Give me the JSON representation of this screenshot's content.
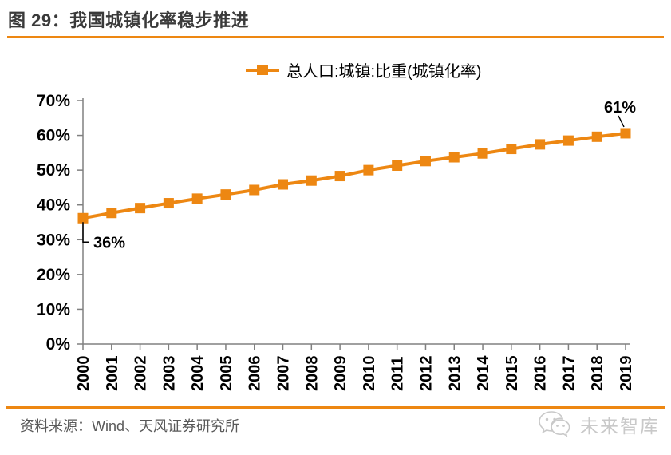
{
  "title": "图 29：我国城镇化率稳步推进",
  "legend": {
    "label": "总人口:城镇:比重(城镇化率)"
  },
  "chart_data": {
    "type": "line",
    "title": "图 29：我国城镇化率稳步推进",
    "xlabel": "",
    "ylabel": "",
    "x": [
      2000,
      2001,
      2002,
      2003,
      2004,
      2005,
      2006,
      2007,
      2008,
      2009,
      2010,
      2011,
      2012,
      2013,
      2014,
      2015,
      2016,
      2017,
      2018,
      2019
    ],
    "series": [
      {
        "name": "总人口:城镇:比重(城镇化率)",
        "color": "#ED8712",
        "marker": "square",
        "values": [
          36.2,
          37.7,
          39.1,
          40.5,
          41.8,
          43.0,
          44.3,
          45.9,
          47.0,
          48.3,
          50.0,
          51.3,
          52.6,
          53.7,
          54.8,
          56.1,
          57.4,
          58.5,
          59.6,
          60.6
        ]
      }
    ],
    "ylim": [
      0,
      70
    ],
    "ytick_step": 10,
    "ytick_labels": [
      "0%",
      "10%",
      "20%",
      "30%",
      "40%",
      "50%",
      "60%",
      "70%"
    ],
    "grid": false,
    "legend_position": "top-center",
    "annotations": [
      {
        "x": 2000,
        "label": "36%",
        "position": "below-left"
      },
      {
        "x": 2019,
        "label": "61%",
        "position": "above-right"
      }
    ]
  },
  "footer": {
    "source": "资料来源：Wind、天风证券研究所",
    "brand": "未来智库"
  },
  "colors": {
    "accent_orange": "#ED8712",
    "axis_gray": "#808080",
    "title_text": "#3a3a3a",
    "tick_text": "#000000",
    "annotation_text": "#000000",
    "source_text": "#595959",
    "brand_gray": "#c9c9c9"
  }
}
